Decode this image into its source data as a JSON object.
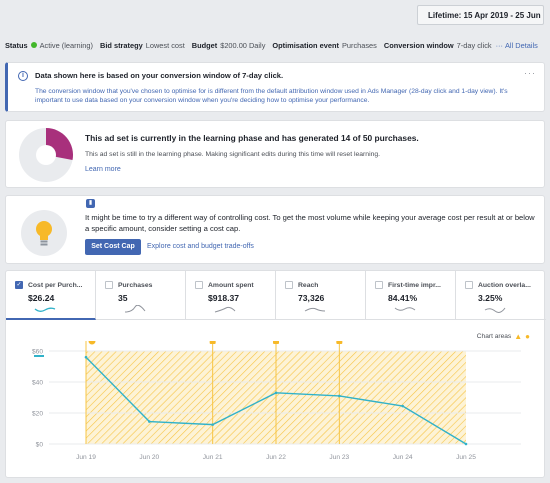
{
  "header": {
    "date_range": "Lifetime: 15 Apr 2019 - 25 Jun 2019"
  },
  "status_bar": {
    "status_label": "Status",
    "status_value": "Active (learning)",
    "bid_label": "Bid strategy",
    "bid_value": "Lowest cost",
    "budget_label": "Budget",
    "budget_value": "$200.00 Daily",
    "optimisation_label": "Optimisation event",
    "optimisation_value": "Purchases",
    "window_label": "Conversion window",
    "window_value": "7-day click",
    "details_link": "All Details"
  },
  "info_banner": {
    "title": "Data shown here is based on your conversion window of 7-day click.",
    "body": "The conversion window that you've chosen to optimise for is different from the default attribution window used in Ads Manager (28-day click and 1-day view). It's important to use data based on your conversion window when you're deciding how to optimise your performance.",
    "more": "···"
  },
  "learning_card": {
    "title": "This ad set is currently in the learning phase and has generated 14 of 50 purchases.",
    "body": "This ad set is still in the learning phase. Making significant edits during this time will reset learning.",
    "link": "Learn more",
    "progress_fraction": 0.28,
    "accent": "#a8307c"
  },
  "cost_cap_card": {
    "body": "It might be time to try a different way of controlling cost. To get the most volume while keeping your average cost per result at or below a specific amount, consider setting a cost cap.",
    "button": "Set Cost Cap",
    "link": "Explore cost and budget trade-offs"
  },
  "metrics": [
    {
      "label": "Cost per Purch...",
      "value": "$26.24",
      "active": true
    },
    {
      "label": "Purchases",
      "value": "35",
      "active": false
    },
    {
      "label": "Amount spent",
      "value": "$918.37",
      "active": false
    },
    {
      "label": "Reach",
      "value": "73,326",
      "active": false
    },
    {
      "label": "First-time impr...",
      "value": "84.41%",
      "active": false
    },
    {
      "label": "Auction overla...",
      "value": "3.25%",
      "active": false
    }
  ],
  "chart_areas_label": "Chart areas",
  "colors": {
    "brand_blue": "#4267b2",
    "line": "#31b2c9",
    "area": "#f7c544",
    "status_green": "#42b72a"
  },
  "chart_data": {
    "type": "line",
    "title": "",
    "xlabel": "",
    "ylabel": "",
    "x": [
      "Jun 19",
      "Jun 20",
      "Jun 21",
      "Jun 22",
      "Jun 23",
      "Jun 24",
      "Jun 25"
    ],
    "y_ticks": [
      "$0",
      "$20",
      "$40",
      "$60"
    ],
    "ylim": [
      0,
      60
    ],
    "grid": true,
    "series": [
      {
        "values": [
          56,
          14.5,
          12.5,
          33,
          31,
          24.5,
          0
        ]
      }
    ],
    "areas": [
      "learning phase"
    ]
  }
}
